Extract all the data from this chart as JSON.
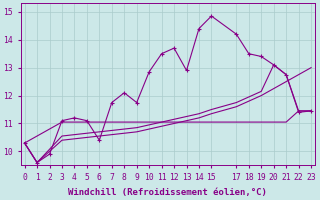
{
  "background_color": "#cce8e8",
  "grid_color": "#aacccc",
  "line_color": "#880088",
  "xlabel": "Windchill (Refroidissement éolien,°C)",
  "xlabel_fontsize": 6.5,
  "tick_fontsize": 5.8,
  "xlim": [
    -0.3,
    23.3
  ],
  "ylim": [
    9.5,
    15.3
  ],
  "yticks": [
    10,
    11,
    12,
    13,
    14,
    15
  ],
  "xticks": [
    0,
    1,
    2,
    3,
    4,
    5,
    6,
    7,
    8,
    9,
    10,
    11,
    12,
    13,
    14,
    15,
    17,
    18,
    19,
    20,
    21,
    22,
    23
  ],
  "curve1_x": [
    0,
    1,
    2,
    3,
    4,
    5,
    6,
    7,
    8,
    9,
    10,
    11,
    12,
    13,
    14,
    15,
    17,
    18,
    19,
    20,
    21,
    22,
    23
  ],
  "curve1_y": [
    10.3,
    9.6,
    9.9,
    11.1,
    11.2,
    11.1,
    10.4,
    11.75,
    12.1,
    11.75,
    12.85,
    13.5,
    13.7,
    12.9,
    14.4,
    14.85,
    14.2,
    13.5,
    13.4,
    13.1,
    12.75,
    11.4,
    11.45
  ],
  "curve2_x": [
    0,
    3,
    4,
    5,
    9,
    10,
    11,
    12,
    13,
    14,
    15,
    17,
    18,
    19,
    20,
    21,
    22,
    23
  ],
  "curve2_y": [
    10.3,
    11.05,
    11.05,
    11.05,
    11.05,
    11.05,
    11.05,
    11.05,
    11.05,
    11.05,
    11.05,
    11.05,
    11.05,
    11.05,
    11.05,
    11.05,
    11.45,
    11.45
  ],
  "curve3_x": [
    0,
    1,
    3,
    4,
    5,
    6,
    7,
    8,
    9,
    10,
    11,
    12,
    13,
    14,
    15,
    17,
    18,
    19,
    20,
    21,
    22,
    23
  ],
  "curve3_y": [
    10.3,
    9.6,
    10.4,
    10.45,
    10.5,
    10.55,
    10.6,
    10.65,
    10.7,
    10.8,
    10.9,
    11.0,
    11.1,
    11.2,
    11.35,
    11.6,
    11.8,
    12.0,
    12.25,
    12.5,
    12.75,
    13.0
  ],
  "curve4_x": [
    0,
    1,
    3,
    4,
    5,
    6,
    7,
    8,
    9,
    10,
    11,
    12,
    13,
    14,
    15,
    17,
    18,
    19,
    20,
    21,
    22,
    23
  ],
  "curve4_y": [
    10.3,
    9.6,
    10.55,
    10.6,
    10.65,
    10.7,
    10.75,
    10.8,
    10.85,
    10.95,
    11.05,
    11.15,
    11.25,
    11.35,
    11.5,
    11.75,
    11.95,
    12.15,
    13.1,
    12.75,
    11.45,
    11.45
  ]
}
